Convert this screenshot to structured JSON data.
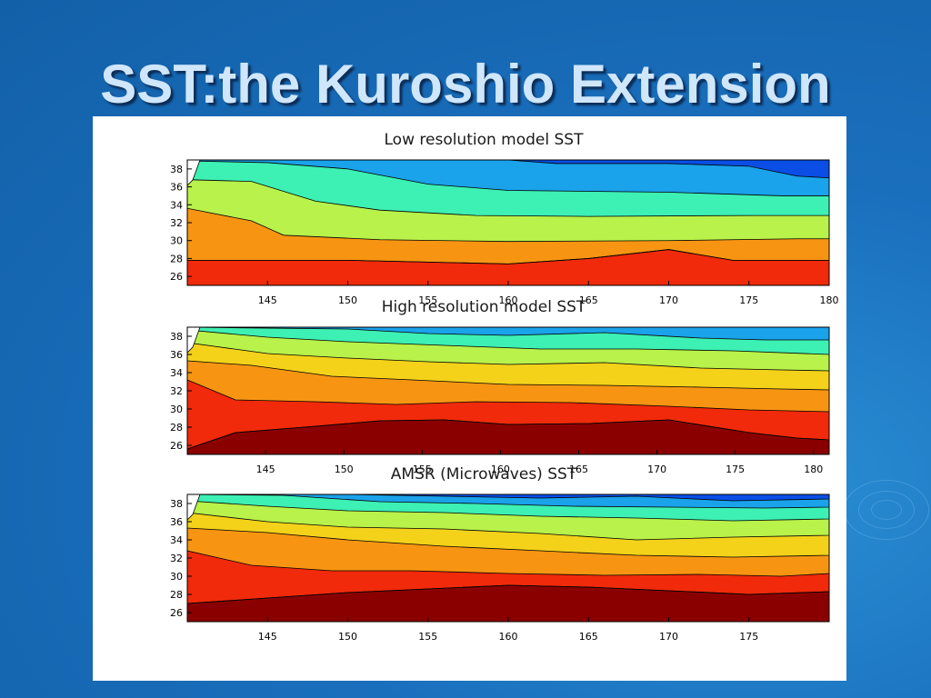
{
  "slide": {
    "title": "SST:the Kuroshio Extension"
  },
  "colors": {
    "background": "#1a6fbd",
    "title_text": "#cfe6fb",
    "panel": "#ffffff"
  },
  "chart_data": [
    {
      "type": "heatmap",
      "title": "Low resolution model SST",
      "xlabel": "",
      "ylabel": "",
      "xlim": [
        140,
        180
      ],
      "ylim": [
        25,
        39
      ],
      "x_ticks": [
        145,
        150,
        155,
        160,
        165,
        170,
        175,
        180
      ],
      "y_ticks": [
        26,
        28,
        30,
        32,
        34,
        36,
        38
      ],
      "colormap": [
        "#0000cc",
        "#0a4ee6",
        "#1aa2ea",
        "#3df0b4",
        "#b8f24a",
        "#f4d21a",
        "#f79512",
        "#f02a0a",
        "#8a0000"
      ],
      "bands": [
        {
          "color": "#f02a0a",
          "y": [
            [
              140,
              27.8
            ],
            [
              150,
              27.8
            ],
            [
              160,
              27.4
            ],
            [
              165,
              28.0
            ],
            [
              170,
              29.0
            ],
            [
              174,
              27.8
            ],
            [
              180,
              27.8
            ]
          ]
        },
        {
          "color": "#f79512",
          "y": [
            [
              140,
              33.6
            ],
            [
              144,
              32.2
            ],
            [
              146,
              30.6
            ],
            [
              152,
              30.1
            ],
            [
              160,
              29.9
            ],
            [
              170,
              30.0
            ],
            [
              178,
              30.2
            ],
            [
              180,
              30.2
            ]
          ]
        },
        {
          "color": "#b8f24a",
          "y": [
            [
              140,
              36.8
            ],
            [
              144,
              36.6
            ],
            [
              148,
              34.4
            ],
            [
              152,
              33.4
            ],
            [
              158,
              32.8
            ],
            [
              165,
              32.7
            ],
            [
              175,
              32.8
            ],
            [
              180,
              32.8
            ]
          ]
        },
        {
          "color": "#3df0b4",
          "y": [
            [
              140,
              38.9
            ],
            [
              145,
              38.7
            ],
            [
              150,
              38.0
            ],
            [
              155,
              36.3
            ],
            [
              160,
              35.6
            ],
            [
              170,
              35.4
            ],
            [
              177,
              35.0
            ],
            [
              180,
              35.0
            ]
          ]
        },
        {
          "color": "#1aa2ea",
          "y": [
            [
              140,
              39
            ],
            [
              160,
              39
            ],
            [
              163,
              38.6
            ],
            [
              170,
              38.6
            ],
            [
              175,
              38.3
            ],
            [
              178,
              37.2
            ],
            [
              180,
              37.0
            ]
          ]
        },
        {
          "color": "#0a4ee6",
          "y": [
            [
              140,
              39
            ],
            [
              174,
              39
            ],
            [
              176,
              38.6
            ],
            [
              178,
              38.5
            ],
            [
              180,
              38.8
            ]
          ]
        }
      ]
    },
    {
      "type": "heatmap",
      "title": "High resolution model SST",
      "xlabel": "",
      "ylabel": "",
      "xlim": [
        140,
        181
      ],
      "ylim": [
        25,
        39
      ],
      "x_ticks": [
        145,
        150,
        155,
        160,
        165,
        170,
        175,
        180
      ],
      "y_ticks": [
        26,
        28,
        30,
        32,
        34,
        36,
        38
      ],
      "colormap": [
        "#0000cc",
        "#0a4ee6",
        "#1aa2ea",
        "#3df0b4",
        "#b8f24a",
        "#f4d21a",
        "#f79512",
        "#f02a0a",
        "#8a0000"
      ],
      "bands": [
        {
          "color": "#8a0000",
          "y": [
            [
              140,
              25.6
            ],
            [
              143,
              27.4
            ],
            [
              148,
              28.1
            ],
            [
              152,
              28.7
            ],
            [
              156,
              28.8
            ],
            [
              160,
              28.3
            ],
            [
              165,
              28.4
            ],
            [
              170,
              28.8
            ],
            [
              175,
              27.4
            ],
            [
              178,
              26.8
            ],
            [
              181,
              26.6
            ]
          ]
        },
        {
          "color": "#f02a0a",
          "y": [
            [
              140,
              33.2
            ],
            [
              143,
              31.0
            ],
            [
              148,
              30.8
            ],
            [
              153,
              30.5
            ],
            [
              158,
              30.8
            ],
            [
              164,
              30.7
            ],
            [
              170,
              30.3
            ],
            [
              175,
              29.9
            ],
            [
              181,
              29.7
            ]
          ]
        },
        {
          "color": "#f79512",
          "y": [
            [
              140,
              35.3
            ],
            [
              144,
              34.8
            ],
            [
              149,
              33.6
            ],
            [
              154,
              33.2
            ],
            [
              160,
              32.7
            ],
            [
              166,
              32.6
            ],
            [
              172,
              32.4
            ],
            [
              177,
              32.2
            ],
            [
              181,
              32.1
            ]
          ]
        },
        {
          "color": "#f4d21a",
          "y": [
            [
              140,
              37.3
            ],
            [
              145,
              36.1
            ],
            [
              150,
              35.6
            ],
            [
              155,
              35.2
            ],
            [
              160,
              34.9
            ],
            [
              166,
              35.1
            ],
            [
              172,
              34.5
            ],
            [
              177,
              34.3
            ],
            [
              181,
              34.2
            ]
          ]
        },
        {
          "color": "#b8f24a",
          "y": [
            [
              140,
              38.7
            ],
            [
              145,
              37.9
            ],
            [
              150,
              37.4
            ],
            [
              156,
              37.0
            ],
            [
              162,
              36.6
            ],
            [
              168,
              36.6
            ],
            [
              174,
              36.4
            ],
            [
              181,
              36.0
            ]
          ]
        },
        {
          "color": "#3df0b4",
          "y": [
            [
              140,
              39
            ],
            [
              150,
              38.8
            ],
            [
              155,
              38.3
            ],
            [
              160,
              38.1
            ],
            [
              166,
              38.4
            ],
            [
              172,
              37.8
            ],
            [
              176,
              37.6
            ],
            [
              181,
              37.6
            ]
          ]
        },
        {
          "color": "#1aa2ea",
          "y": [
            [
              140,
              39
            ],
            [
              160,
              39
            ],
            [
              168,
              38.9
            ],
            [
              175,
              38.6
            ],
            [
              181,
              38.8
            ]
          ]
        }
      ]
    },
    {
      "type": "heatmap",
      "title": "AMSR (Microwaves) SST",
      "xlabel": "",
      "ylabel": "",
      "xlim": [
        140,
        180
      ],
      "ylim": [
        25,
        39
      ],
      "x_ticks": [
        145,
        150,
        155,
        160,
        165,
        170,
        175
      ],
      "y_ticks": [
        26,
        28,
        30,
        32,
        34,
        36,
        38
      ],
      "colormap": [
        "#0000cc",
        "#0a4ee6",
        "#1aa2ea",
        "#3df0b4",
        "#b8f24a",
        "#f4d21a",
        "#f79512",
        "#f02a0a",
        "#8a0000"
      ],
      "bands": [
        {
          "color": "#8a0000",
          "y": [
            [
              140,
              27.0
            ],
            [
              145,
              27.6
            ],
            [
              150,
              28.2
            ],
            [
              155,
              28.6
            ],
            [
              160,
              29.0
            ],
            [
              165,
              28.8
            ],
            [
              170,
              28.4
            ],
            [
              175,
              28.0
            ],
            [
              180,
              28.3
            ]
          ]
        },
        {
          "color": "#f02a0a",
          "y": [
            [
              140,
              32.8
            ],
            [
              144,
              31.2
            ],
            [
              149,
              30.6
            ],
            [
              154,
              30.6
            ],
            [
              160,
              30.3
            ],
            [
              166,
              30.1
            ],
            [
              172,
              30.2
            ],
            [
              177,
              30.0
            ],
            [
              180,
              30.3
            ]
          ]
        },
        {
          "color": "#f79512",
          "y": [
            [
              140,
              35.3
            ],
            [
              145,
              34.8
            ],
            [
              150,
              34.0
            ],
            [
              156,
              33.3
            ],
            [
              162,
              32.8
            ],
            [
              168,
              32.3
            ],
            [
              174,
              32.1
            ],
            [
              180,
              32.3
            ]
          ]
        },
        {
          "color": "#f4d21a",
          "y": [
            [
              140,
              37.0
            ],
            [
              145,
              36.0
            ],
            [
              150,
              35.4
            ],
            [
              156,
              35.2
            ],
            [
              162,
              34.7
            ],
            [
              168,
              34.0
            ],
            [
              174,
              34.3
            ],
            [
              180,
              34.5
            ]
          ]
        },
        {
          "color": "#b8f24a",
          "y": [
            [
              140,
              38.3
            ],
            [
              145,
              37.7
            ],
            [
              150,
              37.2
            ],
            [
              156,
              37.0
            ],
            [
              162,
              36.6
            ],
            [
              168,
              36.4
            ],
            [
              174,
              36.1
            ],
            [
              180,
              36.3
            ]
          ]
        },
        {
          "color": "#3df0b4",
          "y": [
            [
              140,
              39
            ],
            [
              146,
              38.9
            ],
            [
              152,
              38.2
            ],
            [
              158,
              38.0
            ],
            [
              164,
              37.7
            ],
            [
              170,
              37.6
            ],
            [
              176,
              37.5
            ],
            [
              180,
              37.6
            ]
          ]
        },
        {
          "color": "#1aa2ea",
          "y": [
            [
              140,
              39
            ],
            [
              150,
              39
            ],
            [
              156,
              38.8
            ],
            [
              162,
              38.6
            ],
            [
              168,
              38.8
            ],
            [
              174,
              38.3
            ],
            [
              180,
              38.5
            ]
          ]
        },
        {
          "color": "#0a4ee6",
          "y": [
            [
              140,
              39
            ],
            [
              166,
              39
            ],
            [
              170,
              38.7
            ],
            [
              174,
              38.9
            ],
            [
              180,
              39
            ]
          ]
        }
      ]
    }
  ]
}
